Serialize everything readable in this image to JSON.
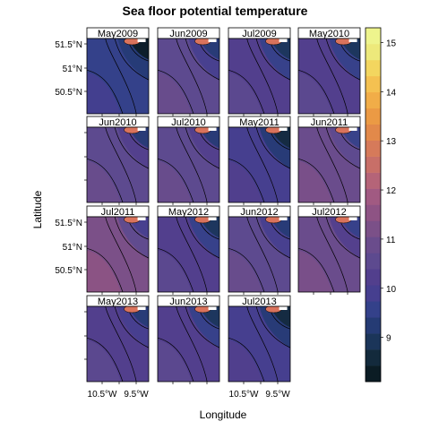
{
  "chart_data": {
    "type": "heatmap",
    "title": "Sea floor potential temperature",
    "xlabel": "Longitude",
    "ylabel": "Latitude",
    "x_ticks": [
      "10.5°W",
      "9.5°W"
    ],
    "y_ticks": [
      "51.5°N",
      "51°N",
      "50.5°N"
    ],
    "panels": [
      {
        "label": "May2009",
        "level": 9.6
      },
      {
        "label": "Jun2009",
        "level": 10.4
      },
      {
        "label": "Jul2009",
        "level": 10.2
      },
      {
        "label": "May2010",
        "level": 10.1
      },
      {
        "label": "Jun2010",
        "level": 10.6
      },
      {
        "label": "Jul2010",
        "level": 10.6
      },
      {
        "label": "May2011",
        "level": 9.8
      },
      {
        "label": "Jun2011",
        "level": 10.9
      },
      {
        "label": "Jul2011",
        "level": 11.1
      },
      {
        "label": "May2012",
        "level": 10.2
      },
      {
        "label": "Jun2012",
        "level": 10.5
      },
      {
        "label": "Jul2012",
        "level": 10.8
      },
      {
        "label": "May2013",
        "level": 10.3
      },
      {
        "label": "Jun2013",
        "level": 10.1
      },
      {
        "label": "Jul2013",
        "level": 9.9
      }
    ],
    "colorbar": {
      "range": [
        8.1,
        15.3
      ],
      "ticks": [
        9,
        10,
        11,
        12,
        13,
        14,
        15
      ],
      "colors": [
        "#0b1c24",
        "#132a3c",
        "#1b3559",
        "#253b74",
        "#34418a",
        "#463f8f",
        "#523f8d",
        "#5d4a8f",
        "#6a4c8c",
        "#7b5088",
        "#8e5384",
        "#a15a82",
        "#b56478",
        "#c86f68",
        "#d67a5a",
        "#e2894a",
        "#eb9a44",
        "#f1ad48",
        "#f4c151",
        "#f3d65f",
        "#ede97b",
        "#eef48d"
      ]
    }
  }
}
